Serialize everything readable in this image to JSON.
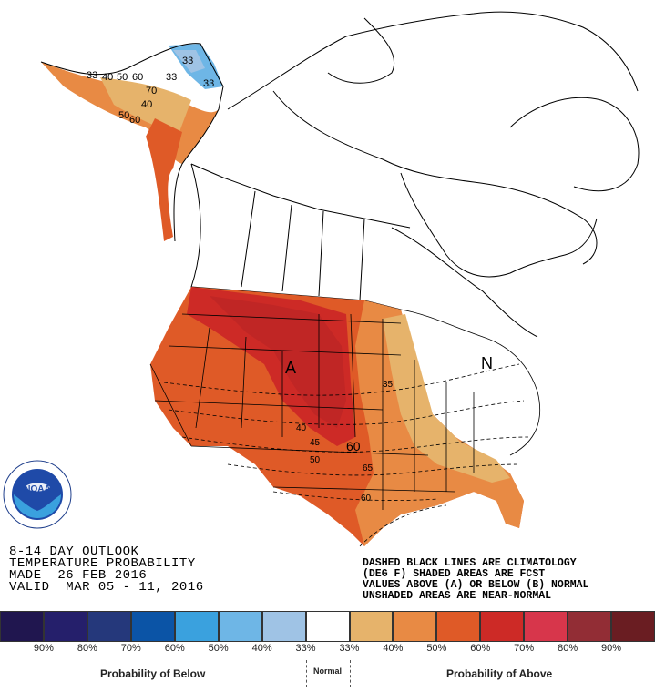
{
  "map": {
    "region_markers": [
      {
        "label": "A"
      },
      {
        "label": "N"
      }
    ],
    "alaska_labels": [
      "33",
      "33",
      "33",
      "40",
      "50",
      "60",
      "70",
      "60",
      "50",
      "40",
      "33"
    ],
    "contour_labels": [
      "35",
      "40",
      "45",
      "50",
      "60",
      "65",
      "60"
    ]
  },
  "title_block": {
    "line1": "8-14 DAY OUTLOOK",
    "line2": "TEMPERATURE PROBABILITY",
    "line3": "MADE  26 FEB 2016",
    "line4": "VALID  MAR 05 - 11, 2016"
  },
  "notes": {
    "line1": "DASHED BLACK LINES ARE CLIMATOLOGY",
    "line2": "(DEG F) SHADED AREAS ARE FCST",
    "line3": "VALUES ABOVE (A) OR BELOW (B) NORMAL",
    "line4": "UNSHADED AREAS ARE NEAR-NORMAL"
  },
  "legend": {
    "swatches": [
      {
        "color": "#20164f"
      },
      {
        "color": "#251f6b"
      },
      {
        "color": "#25387b"
      },
      {
        "color": "#0b54a6"
      },
      {
        "color": "#3aa1de"
      },
      {
        "color": "#6eb6e6"
      },
      {
        "color": "#9fc3e5"
      },
      {
        "color": "#ffffff"
      },
      {
        "color": "#e6b36b"
      },
      {
        "color": "#e88a44"
      },
      {
        "color": "#df5a27"
      },
      {
        "color": "#cd2a26"
      },
      {
        "color": "#d7364b"
      },
      {
        "color": "#922d35"
      },
      {
        "color": "#6a1d22"
      }
    ],
    "ticks": [
      "90%",
      "80%",
      "70%",
      "60%",
      "50%",
      "40%",
      "33%",
      "33%",
      "40%",
      "50%",
      "60%",
      "70%",
      "80%",
      "90%"
    ],
    "below_label": "Probability of Below",
    "normal_label": "Normal",
    "above_label": "Probability of Above"
  },
  "logo": {
    "text": "NOAA"
  }
}
